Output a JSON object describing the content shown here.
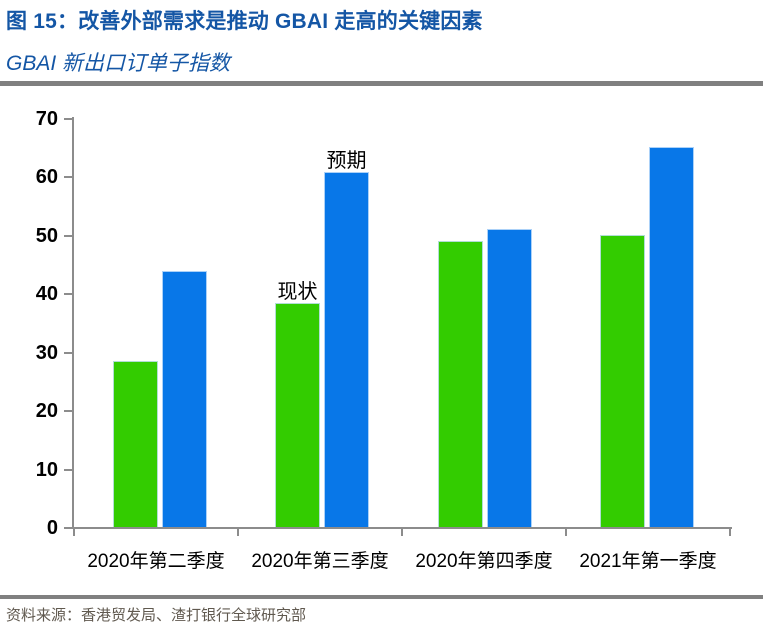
{
  "header": {
    "title": "图 15：改善外部需求是推动 GBAI 走高的关键因素",
    "subtitle": "GBAI 新出口订单子指数"
  },
  "footer": {
    "source": "资料来源：香港贸发局、渣打银行全球研究部"
  },
  "colors": {
    "title_blue": "#1456A5",
    "bar_green": "#33CC00",
    "bar_blue": "#0877E8",
    "divider_gray": "#808080",
    "axis_gray": "#8C8C8C",
    "tick_label": "#000000",
    "source_text": "#60594F"
  },
  "chart_data": {
    "type": "bar",
    "title": "图 15：改善外部需求是推动 GBAI 走高的关键因素",
    "subtitle": "GBAI 新出口订单子指数",
    "categories": [
      "2020年第二季度",
      "2020年第三季度",
      "2020年第四季度",
      "2021年第一季度"
    ],
    "series": [
      {
        "name": "现状",
        "color": "#33CC00",
        "values": [
          28.4,
          38.3,
          49,
          50
        ]
      },
      {
        "name": "预期",
        "color": "#0877E8",
        "values": [
          43.8,
          60.7,
          51,
          65
        ]
      }
    ],
    "ylim": [
      0,
      70
    ],
    "yticks": [
      0,
      10,
      20,
      30,
      40,
      50,
      60,
      70
    ],
    "xlabel": "",
    "ylabel": "",
    "grid": false,
    "legend_position": "none",
    "annotations": [
      {
        "text": "现状",
        "series_index": 0,
        "category_index": 1
      },
      {
        "text": "预期",
        "series_index": 1,
        "category_index": 1
      }
    ],
    "source": "资料来源：香港贸发局、渣打银行全球研究部"
  }
}
